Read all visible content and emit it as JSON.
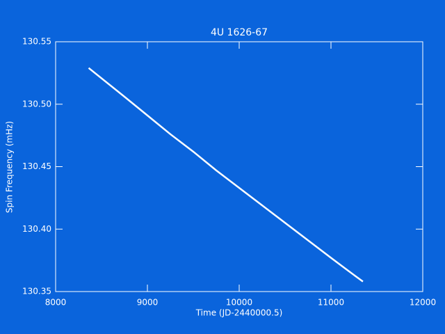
{
  "chart_data": {
    "type": "line",
    "title": "4U 1626-67",
    "x_label": "Time (JD-2440000.5)",
    "y_label": "Spin Frequency (mHz)",
    "x": [
      8360,
      8750,
      9000,
      9250,
      9500,
      9750,
      10000,
      10250,
      10500,
      10750,
      11000,
      11200,
      11348
    ],
    "values": [
      130.529,
      130.506,
      130.491,
      130.476,
      130.462,
      130.447,
      130.433,
      130.419,
      130.405,
      130.391,
      130.377,
      130.366,
      130.358
    ],
    "color": "#ffffff",
    "xlim": [
      8000,
      12000
    ],
    "xticks": [
      8000,
      9000,
      10000,
      11000,
      12000
    ],
    "ylim": [
      130.35,
      130.55
    ],
    "yticks": [
      130.35,
      {
        "value": 130.4,
        "label": "130.40"
      },
      130.45,
      {
        "value": 130.5,
        "label": "130.50"
      },
      130.55
    ]
  }
}
